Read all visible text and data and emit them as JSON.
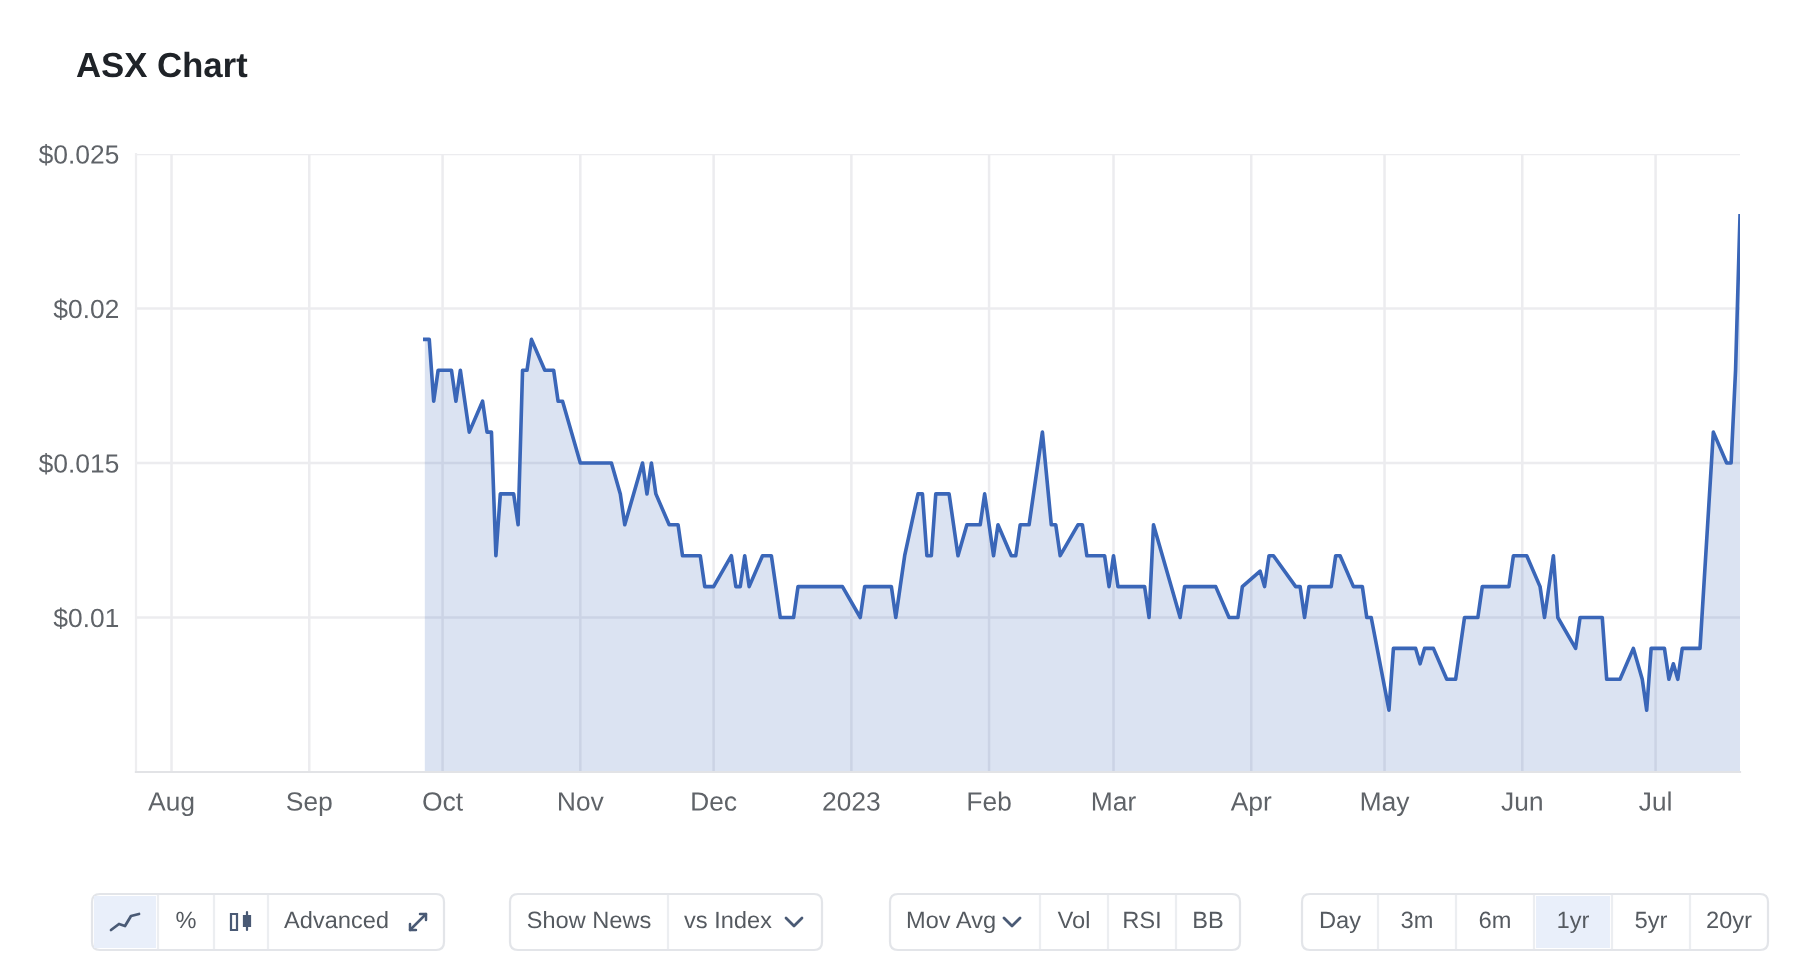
{
  "chart_data": {
    "type": "area",
    "title": "ASX Chart",
    "color": "#3a66b8",
    "x": [
      "2022-09-27",
      "2022-09-28",
      "2022-09-29",
      "2022-09-30",
      "2022-10-03",
      "2022-10-04",
      "2022-10-05",
      "2022-10-06",
      "2022-10-07",
      "2022-10-10",
      "2022-10-11",
      "2022-10-12",
      "2022-10-13",
      "2022-10-14",
      "2022-10-17",
      "2022-10-18",
      "2022-10-19",
      "2022-10-20",
      "2022-10-21",
      "2022-10-24",
      "2022-10-26",
      "2022-10-27",
      "2022-10-28",
      "2022-11-01",
      "2022-11-08",
      "2022-11-10",
      "2022-11-11",
      "2022-11-15",
      "2022-11-16",
      "2022-11-17",
      "2022-11-18",
      "2022-11-21",
      "2022-11-23",
      "2022-11-24",
      "2022-11-28",
      "2022-11-29",
      "2022-12-01",
      "2022-12-05",
      "2022-12-06",
      "2022-12-07",
      "2022-12-08",
      "2022-12-09",
      "2022-12-12",
      "2022-12-14",
      "2022-12-15",
      "2022-12-16",
      "2022-12-19",
      "2022-12-20",
      "2022-12-30",
      "2023-01-03",
      "2023-01-04",
      "2023-01-10",
      "2023-01-11",
      "2023-01-12",
      "2023-01-13",
      "2023-01-16",
      "2023-01-17",
      "2023-01-18",
      "2023-01-19",
      "2023-01-20",
      "2023-01-23",
      "2023-01-24",
      "2023-01-25",
      "2023-01-27",
      "2023-01-30",
      "2023-01-31",
      "2023-02-01",
      "2023-02-02",
      "2023-02-03",
      "2023-02-06",
      "2023-02-07",
      "2023-02-08",
      "2023-02-10",
      "2023-02-13",
      "2023-02-15",
      "2023-02-16",
      "2023-02-17",
      "2023-02-21",
      "2023-02-22",
      "2023-02-23",
      "2023-02-27",
      "2023-02-28",
      "2023-03-01",
      "2023-03-02",
      "2023-03-08",
      "2023-03-09",
      "2023-03-10",
      "2023-03-14",
      "2023-03-16",
      "2023-03-17",
      "2023-03-24",
      "2023-03-27",
      "2023-03-29",
      "2023-03-30",
      "2023-04-03",
      "2023-04-04",
      "2023-04-05",
      "2023-04-06",
      "2023-04-11",
      "2023-04-12",
      "2023-04-13",
      "2023-04-14",
      "2023-04-19",
      "2023-04-20",
      "2023-04-21",
      "2023-04-24",
      "2023-04-26",
      "2023-04-27",
      "2023-04-28",
      "2023-05-02",
      "2023-05-03",
      "2023-05-08",
      "2023-05-09",
      "2023-05-10",
      "2023-05-12",
      "2023-05-15",
      "2023-05-17",
      "2023-05-18",
      "2023-05-19",
      "2023-05-22",
      "2023-05-23",
      "2023-05-29",
      "2023-05-30",
      "2023-06-02",
      "2023-06-05",
      "2023-06-06",
      "2023-06-08",
      "2023-06-09",
      "2023-06-13",
      "2023-06-14",
      "2023-06-19",
      "2023-06-20",
      "2023-06-23",
      "2023-06-26",
      "2023-06-27",
      "2023-06-28",
      "2023-06-29",
      "2023-06-30",
      "2023-07-03",
      "2023-07-04",
      "2023-07-05",
      "2023-07-06",
      "2023-07-07",
      "2023-07-11",
      "2023-07-14",
      "2023-07-17",
      "2023-07-18",
      "2023-07-19",
      "2023-07-20"
    ],
    "values": [
      0.019,
      0.019,
      0.017,
      0.018,
      0.018,
      0.017,
      0.018,
      0.017,
      0.016,
      0.017,
      0.016,
      0.016,
      0.012,
      0.014,
      0.014,
      0.013,
      0.018,
      0.018,
      0.019,
      0.018,
      0.018,
      0.017,
      0.017,
      0.015,
      0.015,
      0.014,
      0.013,
      0.015,
      0.014,
      0.015,
      0.014,
      0.013,
      0.013,
      0.012,
      0.012,
      0.011,
      0.011,
      0.012,
      0.011,
      0.011,
      0.012,
      0.011,
      0.012,
      0.012,
      0.011,
      0.01,
      0.01,
      0.011,
      0.011,
      0.01,
      0.011,
      0.011,
      0.01,
      0.011,
      0.012,
      0.014,
      0.014,
      0.012,
      0.012,
      0.014,
      0.014,
      0.013,
      0.012,
      0.013,
      0.013,
      0.014,
      0.013,
      0.012,
      0.013,
      0.012,
      0.012,
      0.013,
      0.013,
      0.016,
      0.013,
      0.013,
      0.012,
      0.013,
      0.013,
      0.012,
      0.012,
      0.011,
      0.012,
      0.011,
      0.011,
      0.01,
      0.013,
      0.011,
      0.01,
      0.011,
      0.011,
      0.01,
      0.01,
      0.011,
      0.0115,
      0.011,
      0.012,
      0.012,
      0.011,
      0.011,
      0.01,
      0.011,
      0.011,
      0.012,
      0.012,
      0.011,
      0.011,
      0.01,
      0.01,
      0.007,
      0.009,
      0.009,
      0.0085,
      0.009,
      0.009,
      0.008,
      0.008,
      0.009,
      0.01,
      0.01,
      0.011,
      0.011,
      0.012,
      0.012,
      0.011,
      0.01,
      0.012,
      0.01,
      0.009,
      0.01,
      0.01,
      0.008,
      0.008,
      0.009,
      0.0085,
      0.008,
      0.007,
      0.009,
      0.009,
      0.008,
      0.0085,
      0.008,
      0.009,
      0.009,
      0.016,
      0.015,
      0.015,
      0.018,
      0.023
    ],
    "xlim": [
      "2022-07-24",
      "2023-07-20"
    ],
    "xticks": [
      {
        "value": "2022-08-01",
        "label": "Aug"
      },
      {
        "value": "2022-09-01",
        "label": "Sep"
      },
      {
        "value": "2022-10-01",
        "label": "Oct"
      },
      {
        "value": "2022-11-01",
        "label": "Nov"
      },
      {
        "value": "2022-12-01",
        "label": "Dec"
      },
      {
        "value": "2023-01-01",
        "label": "2023"
      },
      {
        "value": "2023-02-01",
        "label": "Feb"
      },
      {
        "value": "2023-03-01",
        "label": "Mar"
      },
      {
        "value": "2023-04-01",
        "label": "Apr"
      },
      {
        "value": "2023-05-01",
        "label": "May"
      },
      {
        "value": "2023-06-01",
        "label": "Jun"
      },
      {
        "value": "2023-07-01",
        "label": "Jul"
      }
    ],
    "ylim": [
      0.005,
      0.025
    ],
    "yticks": [
      {
        "value": 0.01,
        "label": "$0.01"
      },
      {
        "value": 0.015,
        "label": "$0.015"
      },
      {
        "value": 0.02,
        "label": "$0.02"
      },
      {
        "value": 0.025,
        "label": "$0.025"
      }
    ],
    "grid": true,
    "annotations": [
      "%",
      "Advanced",
      "Show News",
      "vs Index",
      "Mov Avg",
      "Vol",
      "RSI",
      "BB",
      "Day",
      "3m",
      "6m",
      "1yr",
      "5yr",
      "20yr"
    ]
  }
}
